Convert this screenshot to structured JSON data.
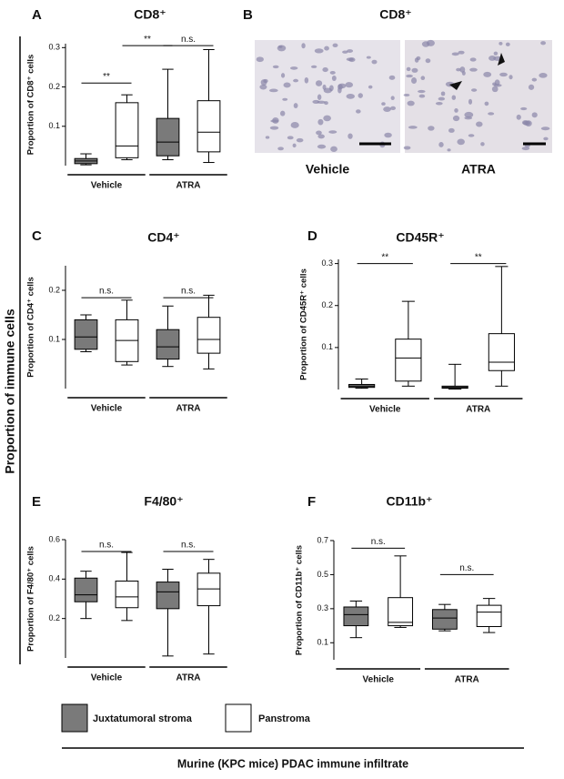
{
  "figure": {
    "y_label": "Proportion of immune cells",
    "caption": "Murine (KPC mice) PDAC immune infiltrate",
    "legend": [
      {
        "name": "Juxtatumoral stroma",
        "color": "#7a7a7a"
      },
      {
        "name": "Panstroma",
        "color": "#ffffff"
      }
    ],
    "panel_b": {
      "letter": "B",
      "title": "CD8⁺",
      "images": [
        "Vehicle",
        "ATRA"
      ]
    }
  },
  "chart_data": [
    {
      "type": "box",
      "letter": "A",
      "title": "CD8⁺",
      "y_label": "Proportion of CD8⁺ cells",
      "categories": [
        "Vehicle",
        "ATRA"
      ],
      "ylim": [
        0,
        0.31
      ],
      "yticks": [
        0.1,
        0.2,
        0.3
      ],
      "series": [
        {
          "boxes": [
            {
              "min": 0.002,
              "q1": 0.005,
              "median": 0.012,
              "q3": 0.018,
              "max": 0.03
            },
            {
              "min": 0.015,
              "q1": 0.025,
              "median": 0.06,
              "q3": 0.12,
              "max": 0.245
            }
          ]
        },
        {
          "boxes": [
            {
              "min": 0.015,
              "q1": 0.02,
              "median": 0.05,
              "q3": 0.16,
              "max": 0.18
            },
            {
              "min": 0.008,
              "q1": 0.035,
              "median": 0.085,
              "q3": 0.165,
              "max": 0.295
            }
          ]
        }
      ],
      "significance": [
        {
          "label": "**",
          "from": 0,
          "to": 1,
          "y": 0.21
        },
        {
          "label": "**",
          "from": 1,
          "to": 2,
          "y": 0.305
        },
        {
          "label": "n.s.",
          "from": 2,
          "to": 3,
          "y": 0.305
        }
      ]
    },
    {
      "type": "box",
      "letter": "C",
      "title": "CD4⁺",
      "y_label": "Proportion of CD4⁺ cells",
      "categories": [
        "Vehicle",
        "ATRA"
      ],
      "ylim": [
        0,
        0.25
      ],
      "yticks": [
        0.1,
        0.2
      ],
      "series": [
        {
          "boxes": [
            {
              "min": 0.075,
              "q1": 0.08,
              "median": 0.105,
              "q3": 0.14,
              "max": 0.15
            },
            {
              "min": 0.045,
              "q1": 0.06,
              "median": 0.085,
              "q3": 0.12,
              "max": 0.168
            }
          ]
        },
        {
          "boxes": [
            {
              "min": 0.048,
              "q1": 0.055,
              "median": 0.098,
              "q3": 0.14,
              "max": 0.18
            },
            {
              "min": 0.04,
              "q1": 0.072,
              "median": 0.1,
              "q3": 0.145,
              "max": 0.19
            }
          ]
        }
      ],
      "significance": [
        {
          "label": "n.s.",
          "from": 0,
          "to": 1,
          "y": 0.185
        },
        {
          "label": "n.s.",
          "from": 2,
          "to": 3,
          "y": 0.185
        }
      ]
    },
    {
      "type": "box",
      "letter": "D",
      "title": "CD45R⁺",
      "y_label": "Proportion of CD45R⁺ cells",
      "categories": [
        "Vehicle",
        "ATRA"
      ],
      "ylim": [
        0,
        0.31
      ],
      "yticks": [
        0.1,
        0.2,
        0.3
      ],
      "series": [
        {
          "boxes": [
            {
              "min": 0.003,
              "q1": 0.005,
              "median": 0.008,
              "q3": 0.012,
              "max": 0.025
            },
            {
              "min": 0.001,
              "q1": 0.003,
              "median": 0.005,
              "q3": 0.008,
              "max": 0.06
            }
          ]
        },
        {
          "boxes": [
            {
              "min": 0.008,
              "q1": 0.02,
              "median": 0.075,
              "q3": 0.12,
              "max": 0.21
            },
            {
              "min": 0.008,
              "q1": 0.045,
              "median": 0.065,
              "q3": 0.133,
              "max": 0.293
            }
          ]
        }
      ],
      "significance": [
        {
          "label": "**",
          "from": 0,
          "to": 1,
          "y": 0.3
        },
        {
          "label": "**",
          "from": 2,
          "to": 3,
          "y": 0.3
        }
      ]
    },
    {
      "type": "box",
      "letter": "E",
      "title": "F4/80⁺",
      "y_label": "Proportion of F4/80⁺ cells",
      "categories": [
        "Vehicle",
        "ATRA"
      ],
      "ylim": [
        0,
        0.6
      ],
      "yticks": [
        0.2,
        0.4,
        0.6
      ],
      "series": [
        {
          "boxes": [
            {
              "min": 0.2,
              "q1": 0.285,
              "median": 0.32,
              "q3": 0.405,
              "max": 0.44
            },
            {
              "min": 0.01,
              "q1": 0.25,
              "median": 0.335,
              "q3": 0.385,
              "max": 0.45
            }
          ]
        },
        {
          "boxes": [
            {
              "min": 0.19,
              "q1": 0.255,
              "median": 0.31,
              "q3": 0.39,
              "max": 0.535
            },
            {
              "min": 0.02,
              "q1": 0.265,
              "median": 0.35,
              "q3": 0.43,
              "max": 0.5
            }
          ]
        }
      ],
      "significance": [
        {
          "label": "n.s.",
          "from": 0,
          "to": 1,
          "y": 0.54
        },
        {
          "label": "n.s.",
          "from": 2,
          "to": 3,
          "y": 0.54
        }
      ]
    },
    {
      "type": "box",
      "letter": "F",
      "title": "CD11b⁺",
      "y_label": "Proportion of CD11b⁺ cells",
      "categories": [
        "Vehicle",
        "ATRA"
      ],
      "ylim": [
        0,
        0.7
      ],
      "yticks": [
        0.1,
        0.3,
        0.5,
        0.7
      ],
      "series": [
        {
          "boxes": [
            {
              "min": 0.13,
              "q1": 0.2,
              "median": 0.265,
              "q3": 0.31,
              "max": 0.345
            },
            {
              "min": 0.17,
              "q1": 0.18,
              "median": 0.245,
              "q3": 0.295,
              "max": 0.325
            }
          ]
        },
        {
          "boxes": [
            {
              "min": 0.19,
              "q1": 0.2,
              "median": 0.22,
              "q3": 0.365,
              "max": 0.61
            },
            {
              "min": 0.16,
              "q1": 0.195,
              "median": 0.28,
              "q3": 0.32,
              "max": 0.36
            }
          ]
        }
      ],
      "significance": [
        {
          "label": "n.s.",
          "from": 0,
          "to": 1,
          "y": 0.655
        },
        {
          "label": "n.s.",
          "from": 2,
          "to": 3,
          "y": 0.5
        }
      ]
    }
  ]
}
